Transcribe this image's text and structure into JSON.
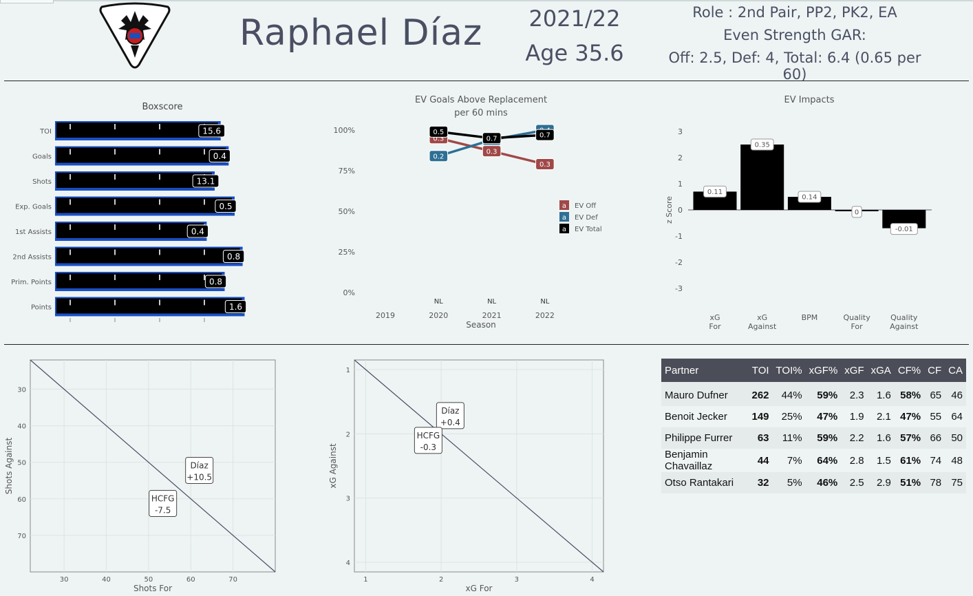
{
  "header": {
    "player_name": "Raphael  Díaz",
    "season": "2021/22",
    "age": "Age 35.6",
    "role": "Role : 2nd Pair,  PP2,  PK2,  EA",
    "gar_label": "Even Strength GAR:",
    "gar_values": "Off: 2.5,  Def: 4, Total: 6.4 (0.65 per 60)"
  },
  "colors": {
    "background": "#eef4f4",
    "bar_fill": "#000000",
    "bar_border": "#1a4fc4",
    "ev_off": "#a04848",
    "ev_def": "#2e6f94",
    "ev_total": "#000000"
  },
  "chart_data": [
    {
      "id": "boxscore",
      "type": "bar",
      "orientation": "horizontal",
      "title": "Boxscore",
      "categories": [
        "TOI",
        "Goals",
        "Shots",
        "Exp. Goals",
        "1st Assists",
        "2nd Assists",
        "Prim. Points",
        "Points"
      ],
      "values": [
        15.6,
        0.4,
        13.1,
        0.5,
        0.4,
        0.8,
        0.8,
        1.6
      ],
      "percentiles": [
        0.83,
        0.87,
        0.8,
        0.9,
        0.76,
        0.94,
        0.85,
        0.95
      ]
    },
    {
      "id": "ev_gar",
      "type": "line",
      "title": "EV Goals Above Replacement",
      "subtitle": "per 60 mins",
      "xlabel": "Season",
      "x": [
        "2019",
        "2020",
        "2021",
        "2022"
      ],
      "league_labels": [
        "",
        "NL",
        "NL",
        "NL"
      ],
      "ylim": [
        0,
        1
      ],
      "yticks": [
        "0%",
        "25%",
        "50%",
        "75%",
        "100%"
      ],
      "legend_key": "a",
      "series": [
        {
          "name": "EV Off",
          "x": [
            "2020",
            "2021",
            "2022"
          ],
          "y": [
            0.95,
            0.87,
            0.79
          ],
          "labels": [
            "0.3",
            "0.3",
            "0.3"
          ]
        },
        {
          "name": "EV Def",
          "x": [
            "2020",
            "2021",
            "2022"
          ],
          "y": [
            0.84,
            0.94,
            1.0
          ],
          "labels": [
            "0.2",
            "0.4",
            "0.4"
          ]
        },
        {
          "name": "EV Total",
          "x": [
            "2020",
            "2021",
            "2022"
          ],
          "y": [
            0.99,
            0.95,
            0.97
          ],
          "labels": [
            "0.5",
            "0.7",
            "0.7"
          ]
        }
      ],
      "legend_position": "right"
    },
    {
      "id": "ev_impacts",
      "type": "bar",
      "title": "EV Impacts",
      "ylabel": "z Score",
      "categories": [
        "xG For",
        "xG Against",
        "BPM",
        "Quality For",
        "Quality Against"
      ],
      "z": [
        0.7,
        2.5,
        0.5,
        -0.05,
        -0.7
      ],
      "labels": [
        "0.11",
        "0.35",
        "0.14",
        "0",
        "-0.01"
      ],
      "ylim": [
        -3,
        3
      ],
      "yticks": [
        3,
        2,
        1,
        0,
        -1,
        -2,
        -3
      ]
    },
    {
      "id": "shots",
      "type": "scatter",
      "xlabel": "Shots For",
      "ylabel": "Shots Against",
      "xlim": [
        22,
        80
      ],
      "ylim": [
        80,
        22
      ],
      "xticks": [
        30,
        40,
        50,
        60,
        70
      ],
      "yticks": [
        30,
        40,
        50,
        60,
        70
      ],
      "points": [
        {
          "name": "Díaz",
          "value": "+10.5",
          "x": 57.3,
          "y": 57.3
        },
        {
          "name": "HCFG",
          "value": "-7.5",
          "x": 57.3,
          "y": 57.3
        }
      ]
    },
    {
      "id": "xg",
      "type": "scatter",
      "xlabel": "xG For",
      "ylabel": "xG Against",
      "xlim": [
        0.85,
        4.15
      ],
      "ylim": [
        4.15,
        0.85
      ],
      "xticks": [
        1,
        2,
        3,
        4
      ],
      "yticks": [
        1,
        2,
        3,
        4
      ],
      "points": [
        {
          "name": "Díaz",
          "value": "+0.4",
          "x": 1.92,
          "y": 1.92
        },
        {
          "name": "HCFG",
          "value": "-0.3",
          "x": 1.92,
          "y": 1.92
        }
      ]
    }
  ],
  "partners": {
    "columns": [
      "Partner",
      "TOI",
      "TOI%",
      "xGF%",
      "xGF",
      "xGA",
      "CF%",
      "CF",
      "CA"
    ],
    "rows": [
      [
        "Mauro Dufner",
        "262",
        "44%",
        "59%",
        "2.3",
        "1.6",
        "58%",
        "65",
        "46"
      ],
      [
        "Benoit Jecker",
        "149",
        "25%",
        "47%",
        "1.9",
        "2.1",
        "47%",
        "55",
        "64"
      ],
      [
        "Philippe Furrer",
        "63",
        "11%",
        "59%",
        "2.2",
        "1.6",
        "57%",
        "66",
        "50"
      ],
      [
        "Benjamin Chavaillaz",
        "44",
        "7%",
        "64%",
        "2.8",
        "1.5",
        "61%",
        "74",
        "48"
      ],
      [
        "Otso Rantakari",
        "32",
        "5%",
        "46%",
        "2.5",
        "2.9",
        "51%",
        "78",
        "75"
      ]
    ]
  }
}
